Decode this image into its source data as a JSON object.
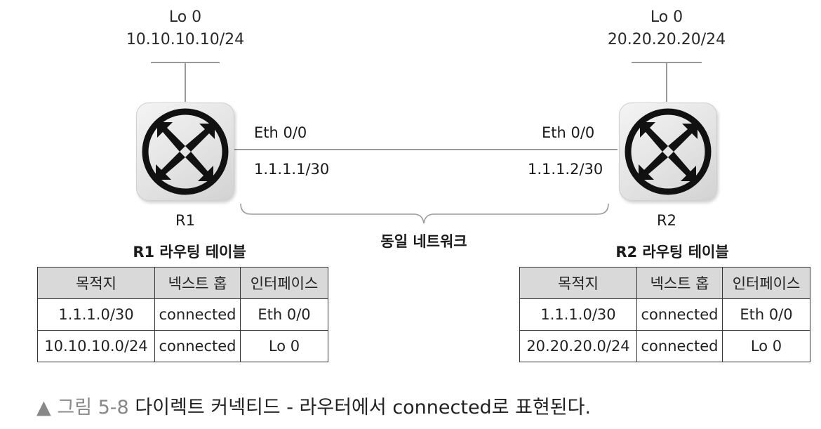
{
  "r1": {
    "name": "R1",
    "lo_label": "Lo 0",
    "lo_ip": "10.10.10.10/24",
    "eth_name": "Eth 0/0",
    "eth_ip": "1.1.1.1/30",
    "table_title": "R1 라우팅 테이블",
    "headers": [
      "목적지",
      "넥스트 홉",
      "인터페이스"
    ],
    "rows": [
      [
        "1.1.1.0/30",
        "connected",
        "Eth 0/0"
      ],
      [
        "10.10.10.0/24",
        "connected",
        "Lo 0"
      ]
    ]
  },
  "r2": {
    "name": "R2",
    "lo_label": "Lo 0",
    "lo_ip": "20.20.20.20/24",
    "eth_name": "Eth 0/0",
    "eth_ip": "1.1.1.2/30",
    "table_title": "R2 라우팅 테이블",
    "headers": [
      "목적지",
      "넥스트 홉",
      "인터페이스"
    ],
    "rows": [
      [
        "1.1.1.0/30",
        "connected",
        "Eth 0/0"
      ],
      [
        "20.20.20.0/24",
        "connected",
        "Lo 0"
      ]
    ]
  },
  "segment_label": "동일 네트워크",
  "caption": {
    "marker": "▲",
    "figure": "그림 5-8",
    "text": "다이렉트 커넥티드 - 라우터에서 connected로 표현된다."
  },
  "colors": {
    "link_line": "#9a9a9a",
    "table_header_bg": "#d9d9d9",
    "router_icon": "#111111"
  },
  "icons": {
    "router": "router-icon"
  }
}
